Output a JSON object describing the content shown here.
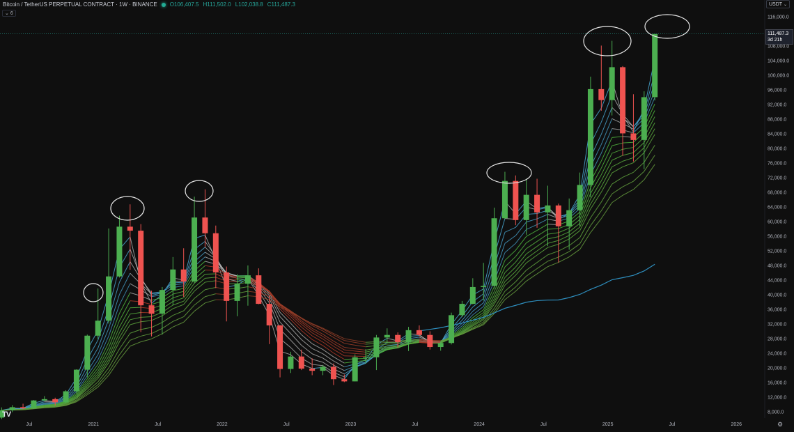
{
  "header": {
    "title": "Bitcoin / TetherUS PERPETUAL CONTRACT · 1W · BINANCE",
    "open": "O106,407.5",
    "high": "H111,502.0",
    "low": "L102,038.8",
    "close": "C111,487.3",
    "indicator_count": "6"
  },
  "currency_selector": "USDT",
  "last_price_label": {
    "price": "111,487.3",
    "countdown": "3d 21h"
  },
  "icons": {
    "logo": "tradingview-logo",
    "settings": "settings-icon",
    "collapse": "chevron-down-icon"
  },
  "colors": {
    "up": "#26a69a",
    "candle_up": "#4caf50",
    "candle_down": "#ef5350",
    "ribbon_bull": "#3fbf3f",
    "ribbon_bear": "#c62828",
    "long_ma": "#2e8fbf",
    "background": "#0f0f0f"
  },
  "chart_data": {
    "type": "candlestick",
    "title": "Bitcoin / TetherUS PERPETUAL CONTRACT · 1W · BINANCE",
    "ylim": [
      8000,
      116000
    ],
    "y_scale": "linear",
    "y_ticks": [
      "8,000.0",
      "12,000.0",
      "16,000.0",
      "20,000.0",
      "24,000.0",
      "28,000.0",
      "32,000.0",
      "36,000.0",
      "40,000.0",
      "44,000.0",
      "48,000.0",
      "52,000.0",
      "56,000.0",
      "60,000.0",
      "64,000.0",
      "68,000.0",
      "72,000.0",
      "76,000.0",
      "80,000.0",
      "84,000.0",
      "88,000.0",
      "92,000.0",
      "96,000.0",
      "100,000.0",
      "104,000.0",
      "108,000.0",
      "116,000.0"
    ],
    "x_ticks": [
      "Jul",
      "2021",
      "Jul",
      "2022",
      "Jul",
      "2023",
      "Jul",
      "2024",
      "Jul",
      "2025",
      "Jul",
      "2026"
    ],
    "grid": false,
    "columns": [
      "date",
      "open",
      "high",
      "low",
      "close"
    ],
    "candles": [
      [
        "2020-04",
        6600,
        9400,
        6200,
        8600
      ],
      [
        "2020-05",
        8600,
        10000,
        8100,
        9450
      ],
      [
        "2020-06",
        9450,
        10400,
        8900,
        9130
      ],
      [
        "2020-07",
        9130,
        11400,
        8950,
        11300
      ],
      [
        "2020-08",
        11300,
        12470,
        11100,
        11650
      ],
      [
        "2020-09",
        11650,
        12050,
        9900,
        10780
      ],
      [
        "2020-10",
        10780,
        14100,
        10500,
        13800
      ],
      [
        "2020-11",
        13800,
        19800,
        13200,
        19700
      ],
      [
        "2020-12",
        19700,
        29300,
        17600,
        29000
      ],
      [
        "2021-01",
        29000,
        41900,
        28100,
        33100
      ],
      [
        "2021-02",
        33100,
        58300,
        32300,
        45200
      ],
      [
        "2021-03",
        45200,
        61800,
        44900,
        58800
      ],
      [
        "2021-04",
        58800,
        64900,
        47000,
        57700
      ],
      [
        "2021-05",
        57700,
        59500,
        30000,
        37300
      ],
      [
        "2021-06",
        37300,
        41300,
        28800,
        35000
      ],
      [
        "2021-07",
        35000,
        42300,
        29300,
        41500
      ],
      [
        "2021-08",
        41500,
        50500,
        37300,
        47100
      ],
      [
        "2021-09",
        47100,
        52900,
        39600,
        43800
      ],
      [
        "2021-10",
        43800,
        67000,
        43300,
        61300
      ],
      [
        "2021-11",
        61300,
        69000,
        53200,
        57000
      ],
      [
        "2021-12",
        57000,
        59100,
        42000,
        46300
      ],
      [
        "2022-01",
        46300,
        47900,
        32900,
        38500
      ],
      [
        "2022-02",
        38500,
        45800,
        34300,
        43200
      ],
      [
        "2022-03",
        43200,
        48200,
        37200,
        45500
      ],
      [
        "2022-04",
        45500,
        47400,
        37600,
        37700
      ],
      [
        "2022-05",
        37700,
        40000,
        26700,
        31800
      ],
      [
        "2022-06",
        31800,
        31900,
        17600,
        19900
      ],
      [
        "2022-07",
        19900,
        24600,
        18800,
        23300
      ],
      [
        "2022-08",
        23300,
        25200,
        19600,
        20000
      ],
      [
        "2022-09",
        20000,
        22800,
        18200,
        19400
      ],
      [
        "2022-10",
        19400,
        21000,
        18200,
        20500
      ],
      [
        "2022-11",
        20500,
        21400,
        15500,
        17100
      ],
      [
        "2022-12",
        17100,
        18400,
        16300,
        16500
      ],
      [
        "2023-01",
        16500,
        23900,
        16500,
        23100
      ],
      [
        "2023-02",
        23100,
        25300,
        21400,
        23100
      ],
      [
        "2023-03",
        23100,
        29200,
        19600,
        28500
      ],
      [
        "2023-04",
        28500,
        31000,
        26900,
        29200
      ],
      [
        "2023-05",
        29200,
        29900,
        25800,
        27200
      ],
      [
        "2023-06",
        27200,
        31400,
        24800,
        30500
      ],
      [
        "2023-07",
        30500,
        31800,
        28900,
        29200
      ],
      [
        "2023-08",
        29200,
        30200,
        25200,
        25900
      ],
      [
        "2023-09",
        25900,
        27500,
        24900,
        27000
      ],
      [
        "2023-10",
        27000,
        35300,
        26600,
        34600
      ],
      [
        "2023-11",
        34600,
        38500,
        34100,
        37700
      ],
      [
        "2023-12",
        37700,
        44700,
        37600,
        42300
      ],
      [
        "2024-01",
        42300,
        48900,
        38600,
        42600
      ],
      [
        "2024-02",
        42600,
        64000,
        41900,
        61100
      ],
      [
        "2024-03",
        61100,
        73800,
        60800,
        71300
      ],
      [
        "2024-04",
        71300,
        72800,
        59200,
        60600
      ],
      [
        "2024-05",
        60600,
        71900,
        56600,
        67500
      ],
      [
        "2024-06",
        67500,
        71900,
        58500,
        62700
      ],
      [
        "2024-07",
        62700,
        70000,
        53500,
        64600
      ],
      [
        "2024-08",
        64600,
        65100,
        49000,
        58900
      ],
      [
        "2024-09",
        58900,
        66500,
        52500,
        63300
      ],
      [
        "2024-10",
        63300,
        73600,
        58900,
        70200
      ],
      [
        "2024-11",
        70200,
        99800,
        66800,
        96400
      ],
      [
        "2024-12",
        96400,
        108300,
        90500,
        93400
      ],
      [
        "2025-01",
        93400,
        109600,
        89200,
        102400
      ],
      [
        "2025-02",
        102400,
        102700,
        78200,
        84300
      ],
      [
        "2025-03",
        84300,
        95000,
        76600,
        82500
      ],
      [
        "2025-04",
        82500,
        95800,
        74500,
        94200
      ],
      [
        "2025-05",
        94200,
        111502,
        93300,
        111487.3
      ]
    ],
    "annotations": [
      "ellipse around 2021-01 high",
      "ellipse around 2021-04 high",
      "ellipse around 2021-11 high",
      "ellipse around 2024-03 high",
      "ellipse around 2024-12 high",
      "ellipse around 2025-05 high"
    ]
  }
}
